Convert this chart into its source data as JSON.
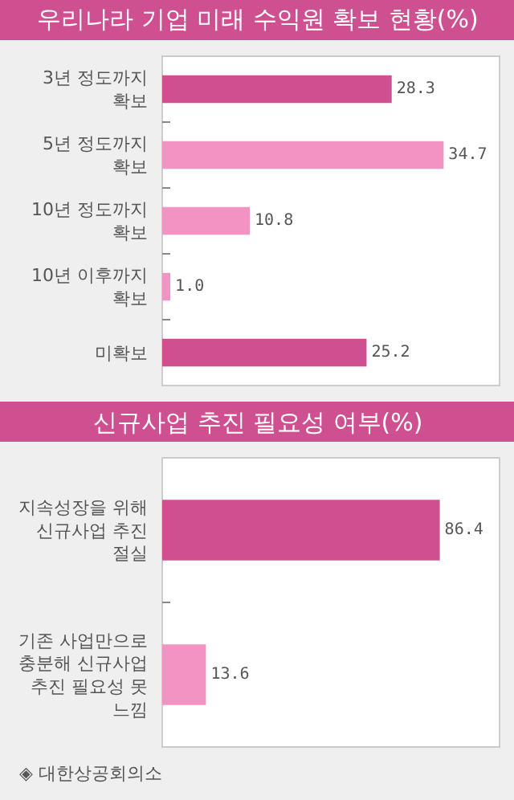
{
  "chart_data": [
    {
      "type": "bar",
      "orientation": "horizontal",
      "title": "우리나라 기업 미래 수익원 확보 현황(%)",
      "categories": [
        "3년 정도까지 확보",
        "5년 정도까지 확보",
        "10년 정도까지 확보",
        "10년 이후까지 확보",
        "미확보"
      ],
      "values": [
        28.3,
        34.7,
        10.8,
        1.0,
        25.2
      ],
      "colors": [
        "#cf5090",
        "#f293c3",
        "#f293c3",
        "#f293c3",
        "#cf5090"
      ],
      "value_labels": [
        "28.3",
        "34.7",
        "10.8",
        "1.0",
        "25.2"
      ],
      "xlim": [
        0,
        41.6
      ],
      "tick_labels": "y"
    },
    {
      "type": "bar",
      "orientation": "horizontal",
      "title": "신규사업 추진 필요성 여부(%)",
      "categories": [
        "지속성장을 위해 신규사업 추진 절실",
        "기존 사업만으로 충분해 신규사업 추진 필요성 못 느낌"
      ],
      "values": [
        86.4,
        13.6
      ],
      "colors": [
        "#cf5090",
        "#f293c3"
      ],
      "value_labels": [
        "86.4",
        "13.6"
      ],
      "xlim": [
        0,
        105
      ],
      "tick_labels": "y",
      "annotations": [
        "◈ 대한상공회의소"
      ]
    }
  ]
}
